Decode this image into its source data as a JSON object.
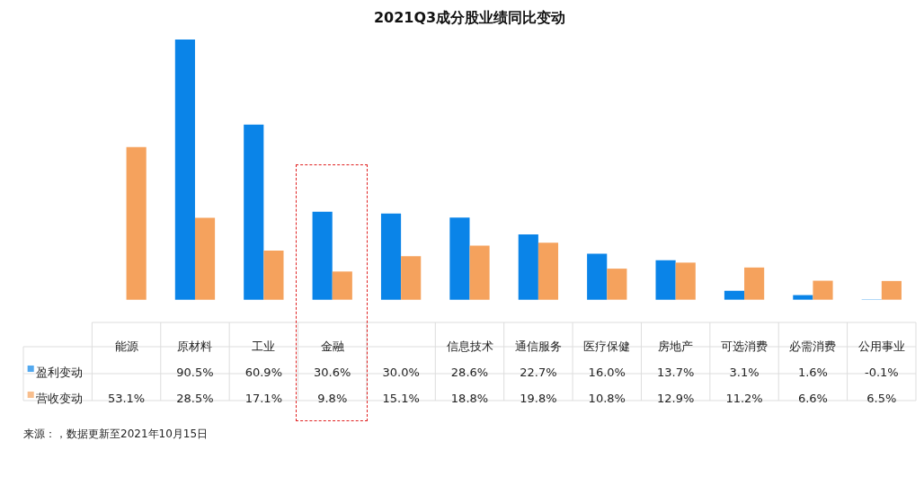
{
  "chart_data": {
    "type": "bar",
    "title": "2021Q3成分股业绩同比变动",
    "categories": [
      "能源",
      "原材料",
      "工业",
      "金融",
      null,
      "信息技术",
      "通信服务",
      "医疗保健",
      "房地产",
      "可选消费",
      "必需消费",
      "公用事业"
    ],
    "series": [
      {
        "name": "盈利变动",
        "color": "#0a84e8",
        "values": [
          null,
          90.5,
          60.9,
          30.6,
          30.0,
          28.6,
          22.7,
          16.0,
          13.7,
          3.1,
          1.6,
          -0.1
        ],
        "value_labels": [
          null,
          "90.5%",
          "60.9%",
          "30.6%",
          "30.0%",
          "28.6%",
          "22.7%",
          "16.0%",
          "13.7%",
          "3.1%",
          "1.6%",
          "-0.1%"
        ]
      },
      {
        "name": "营收变动",
        "color": "#f5a25d",
        "values": [
          53.1,
          28.5,
          17.1,
          9.8,
          15.1,
          18.8,
          19.8,
          10.8,
          12.9,
          11.2,
          6.6,
          6.5
        ],
        "value_labels": [
          "53.1%",
          "28.5%",
          "17.1%",
          "9.8%",
          "15.1%",
          "18.8%",
          "19.8%",
          "10.8%",
          "12.9%",
          "11.2%",
          "6.6%",
          "6.5%"
        ]
      }
    ],
    "legend": "left",
    "annotations": [
      "来源：，数据更新至2021年10月15日"
    ]
  }
}
